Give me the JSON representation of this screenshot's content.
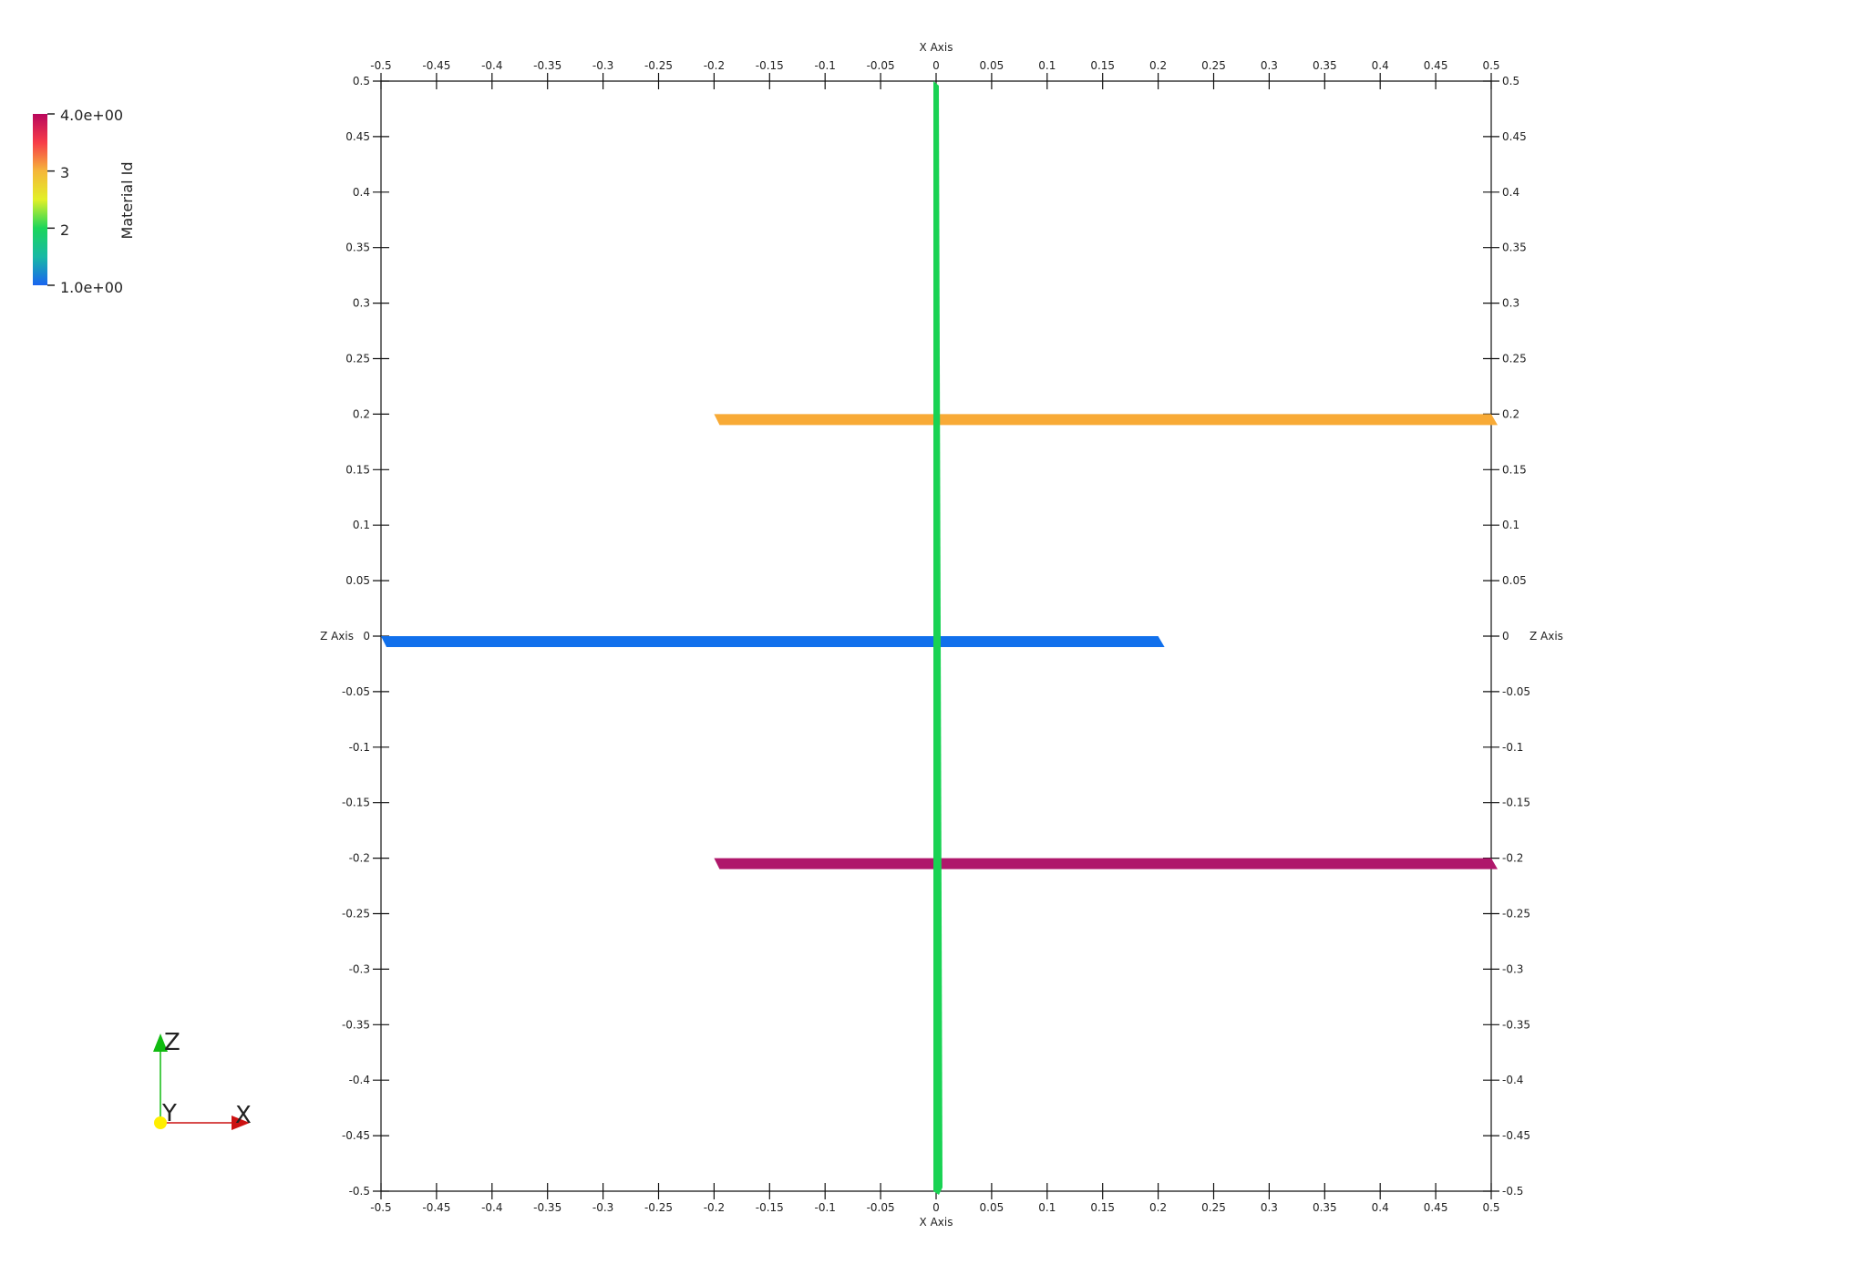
{
  "chart_data": {
    "type": "line",
    "xlabel": "X Axis",
    "ylabel": "Z Axis",
    "xlim": [
      -0.5,
      0.5
    ],
    "ylim": [
      -0.5,
      0.5
    ],
    "x_ticks": [
      "-0.5",
      "-0.45",
      "-0.4",
      "-0.35",
      "-0.3",
      "-0.25",
      "-0.2",
      "-0.15",
      "-0.1",
      "-0.05",
      "0",
      "0.05",
      "0.1",
      "0.15",
      "0.2",
      "0.25",
      "0.3",
      "0.35",
      "0.4",
      "0.45",
      "0.5"
    ],
    "y_ticks": [
      "0.5",
      "0.45",
      "0.4",
      "0.35",
      "0.3",
      "0.25",
      "0.2",
      "0.15",
      "0.1",
      "0.05",
      "0",
      "-0.05",
      "-0.1",
      "-0.15",
      "-0.2",
      "-0.25",
      "-0.3",
      "-0.35",
      "-0.4",
      "-0.45",
      "-0.5"
    ],
    "grid": false,
    "series": [
      {
        "material_id": 2,
        "color": "#19d253",
        "x": [
          0,
          0
        ],
        "z": [
          0.5,
          -0.5
        ]
      },
      {
        "material_id": 3,
        "color": "#f8aa36",
        "x": [
          -0.2,
          0.5
        ],
        "z": [
          0.2,
          0.2
        ]
      },
      {
        "material_id": 1,
        "color": "#1170ec",
        "x": [
          -0.5,
          0.2
        ],
        "z": [
          0,
          0
        ]
      },
      {
        "material_id": 4,
        "color": "#af176b",
        "x": [
          -0.2,
          0.5
        ],
        "z": [
          -0.2,
          -0.2
        ]
      }
    ]
  },
  "legend": {
    "title": "Material Id",
    "labels": [
      "4.0e+00",
      "3",
      "2",
      "1.0e+00"
    ],
    "values": [
      4,
      3,
      2,
      1
    ],
    "colors": [
      "#b9075d",
      "#f73c49",
      "#f5b63a",
      "#e2f027",
      "#1bd65b",
      "#18b9a5",
      "#1a64f0"
    ]
  },
  "orientation": {
    "x_label": "X",
    "y_label": "Y",
    "z_label": "Z",
    "x_color": "#cc1111",
    "y_color": "#ffee00",
    "z_color": "#11bb11"
  }
}
